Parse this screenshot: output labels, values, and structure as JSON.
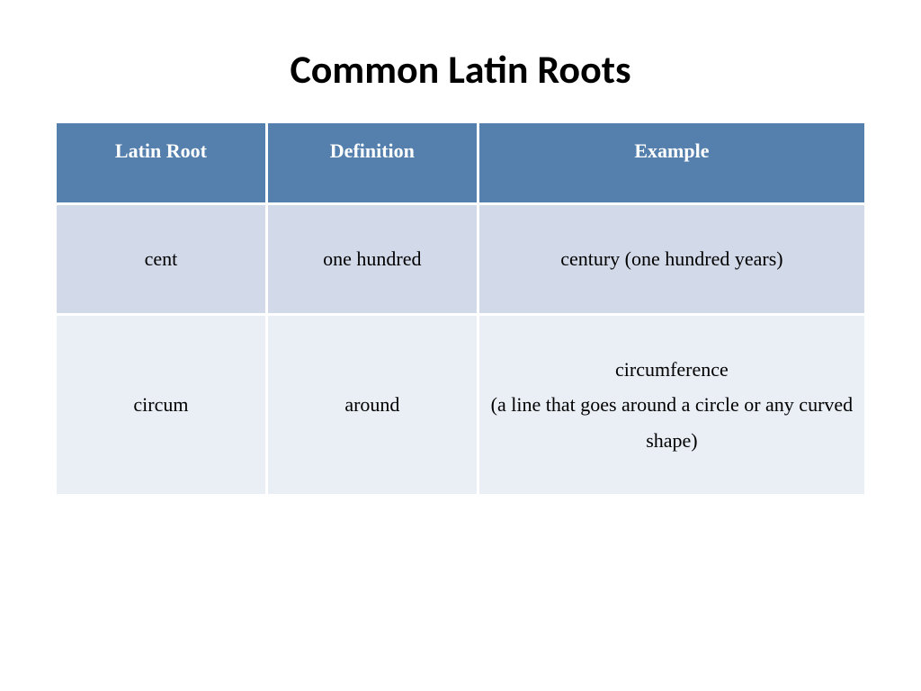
{
  "title": "Common Latin Roots",
  "table": {
    "header_bg": "#5580ad",
    "header_color": "#ffffff",
    "row_odd_bg": "#d2d9e8",
    "row_even_bg": "#eaeef5",
    "text_color": "#000000",
    "border_spacing": 3,
    "columns": [
      {
        "label": "Latin Root",
        "width_pct": 26
      },
      {
        "label": "Definition",
        "width_pct": 26
      },
      {
        "label": "Example",
        "width_pct": 48
      }
    ],
    "rows": [
      {
        "root": "cent",
        "definition": "one hundred",
        "example": "century (one hundred years)"
      },
      {
        "root": "circum",
        "definition": "around",
        "example": "circumference\n(a line that goes around a circle or any curved shape)"
      }
    ]
  },
  "typography": {
    "title_fontsize": 44,
    "title_weight": "bold",
    "header_fontsize": 22,
    "cell_fontsize": 22,
    "cell_font": "Times New Roman"
  },
  "background_color": "#ffffff"
}
